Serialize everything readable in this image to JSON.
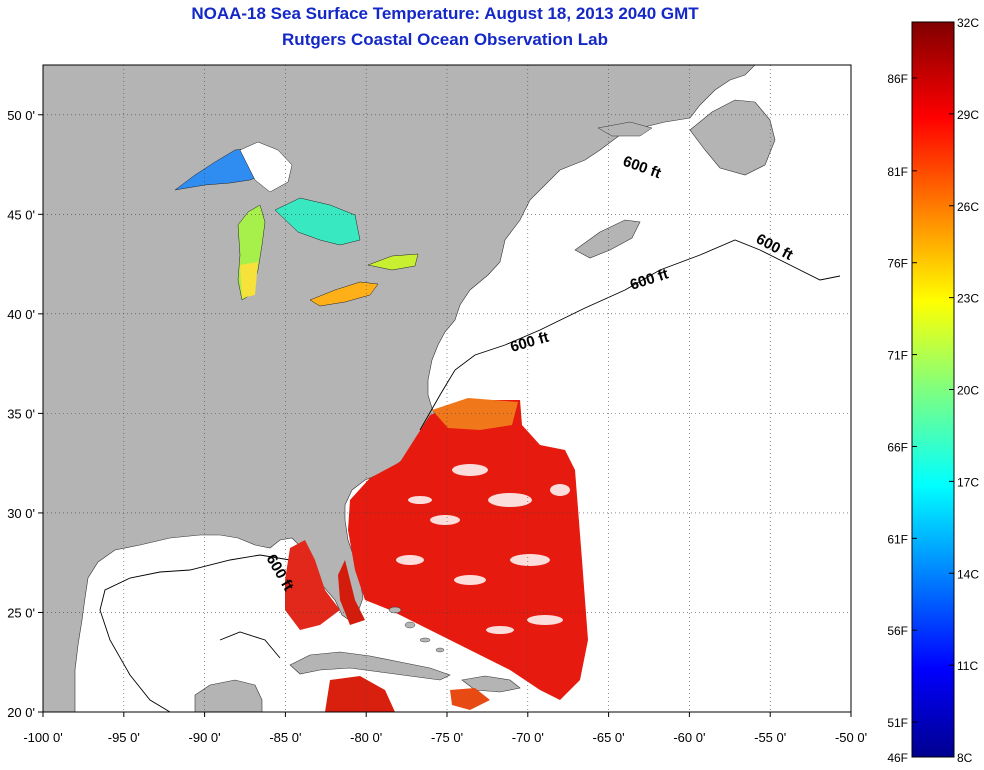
{
  "title": "NOAA-18 Sea Surface Temperature:  August 18, 2013 2040 GMT",
  "subtitle": "Rutgers Coastal Ocean Observation Lab",
  "map": {
    "lon_range": [
      -100,
      -50
    ],
    "lat_range": [
      20,
      52.5
    ],
    "lon_ticks": [
      {
        "value": -100,
        "label": "-100 0'"
      },
      {
        "value": -95,
        "label": "-95 0'"
      },
      {
        "value": -90,
        "label": "-90 0'"
      },
      {
        "value": -85,
        "label": "-85 0'"
      },
      {
        "value": -80,
        "label": "-80 0'"
      },
      {
        "value": -75,
        "label": "-75 0'"
      },
      {
        "value": -70,
        "label": "-70 0'"
      },
      {
        "value": -65,
        "label": "-65 0'"
      },
      {
        "value": -60,
        "label": "-60 0'"
      },
      {
        "value": -55,
        "label": "-55 0'"
      },
      {
        "value": -50,
        "label": "-50 0'"
      }
    ],
    "lat_ticks": [
      {
        "value": 20,
        "label": "20 0'"
      },
      {
        "value": 25,
        "label": "25 0'"
      },
      {
        "value": 30,
        "label": "30 0'"
      },
      {
        "value": 35,
        "label": "35 0'"
      },
      {
        "value": 40,
        "label": "40 0'"
      },
      {
        "value": 45,
        "label": "45 0'"
      },
      {
        "value": 50,
        "label": "50 0'"
      }
    ],
    "grid": "dotted",
    "colors": {
      "land": "#b4b4b4",
      "ocean_nodata": "#ffffff",
      "contour": "#000000"
    },
    "contour_labels": [
      "600 ft",
      "600 ft",
      "600 ft",
      "600 ft",
      "600 ft"
    ]
  },
  "colorbar": {
    "celsius_range": [
      8,
      32
    ],
    "celsius_labels": [
      "32C",
      "29C",
      "26C",
      "23C",
      "20C",
      "17C",
      "14C",
      "11C",
      "8C"
    ],
    "fahrenheit_labels": [
      "86F",
      "81F",
      "76F",
      "71F",
      "66F",
      "61F",
      "56F",
      "51F",
      "46F"
    ],
    "colormap": "jet"
  }
}
